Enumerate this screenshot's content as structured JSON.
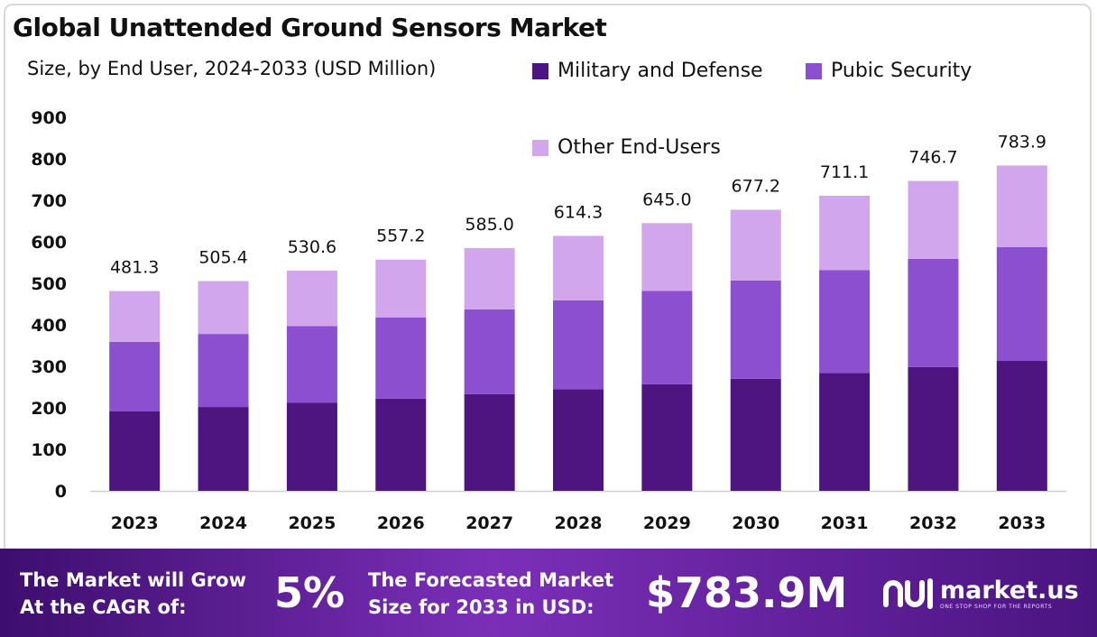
{
  "title": "Global Unattended Ground Sensors Market",
  "subtitle": "Size, by End User, 2024-2033 (USD Million)",
  "colors": {
    "military": "#4e1581",
    "public": "#8b4fd0",
    "other": "#d1a6ec"
  },
  "chart_data": {
    "type": "bar",
    "stacked": true,
    "title": "Global Unattended Ground Sensors Market",
    "subtitle": "Size, by End User, 2024-2033 (USD Million)",
    "categories": [
      "2023",
      "2024",
      "2025",
      "2026",
      "2027",
      "2028",
      "2029",
      "2030",
      "2031",
      "2032",
      "2033"
    ],
    "series": [
      {
        "name": "Military and Defense",
        "color": "#4e1581",
        "values": [
          192,
          202,
          212,
          222,
          233,
          245,
          257,
          270,
          284,
          298,
          313
        ]
      },
      {
        "name": "Pubic Security",
        "color": "#8b4fd0",
        "values": [
          167,
          176,
          185,
          196,
          204,
          214,
          225,
          237,
          248,
          261,
          274
        ]
      },
      {
        "name": "Other End-Users",
        "color": "#d1a6ec",
        "values": [
          122.3,
          127.4,
          133.6,
          139.2,
          148.0,
          155.3,
          163.0,
          170.2,
          179.1,
          187.7,
          196.9
        ]
      }
    ],
    "totals": [
      481.3,
      505.4,
      530.6,
      557.2,
      585.0,
      614.3,
      645.0,
      677.2,
      711.1,
      746.7,
      783.9
    ],
    "total_labels": [
      "481.3",
      "505.4",
      "530.6",
      "557.2",
      "585.0",
      "614.3",
      "645.0",
      "677.2",
      "711.1",
      "746.7",
      "783.9"
    ],
    "yticks": [
      "0",
      "100",
      "200",
      "300",
      "400",
      "500",
      "600",
      "700",
      "800",
      "900"
    ],
    "ylim": [
      0,
      900
    ],
    "legend_position": "top-right",
    "xlabel": "",
    "ylabel": ""
  },
  "footer": {
    "cagr_text_line1": "The Market will Grow",
    "cagr_text_line2": "At the CAGR of:",
    "cagr_value": "5%",
    "forecast_text_line1": "The Forecasted Market",
    "forecast_text_line2": "Size for 2033 in USD:",
    "forecast_value": "$783.9M",
    "brand_name": "market.us",
    "brand_tagline": "ONE STOP SHOP FOR THE REPORTS"
  }
}
